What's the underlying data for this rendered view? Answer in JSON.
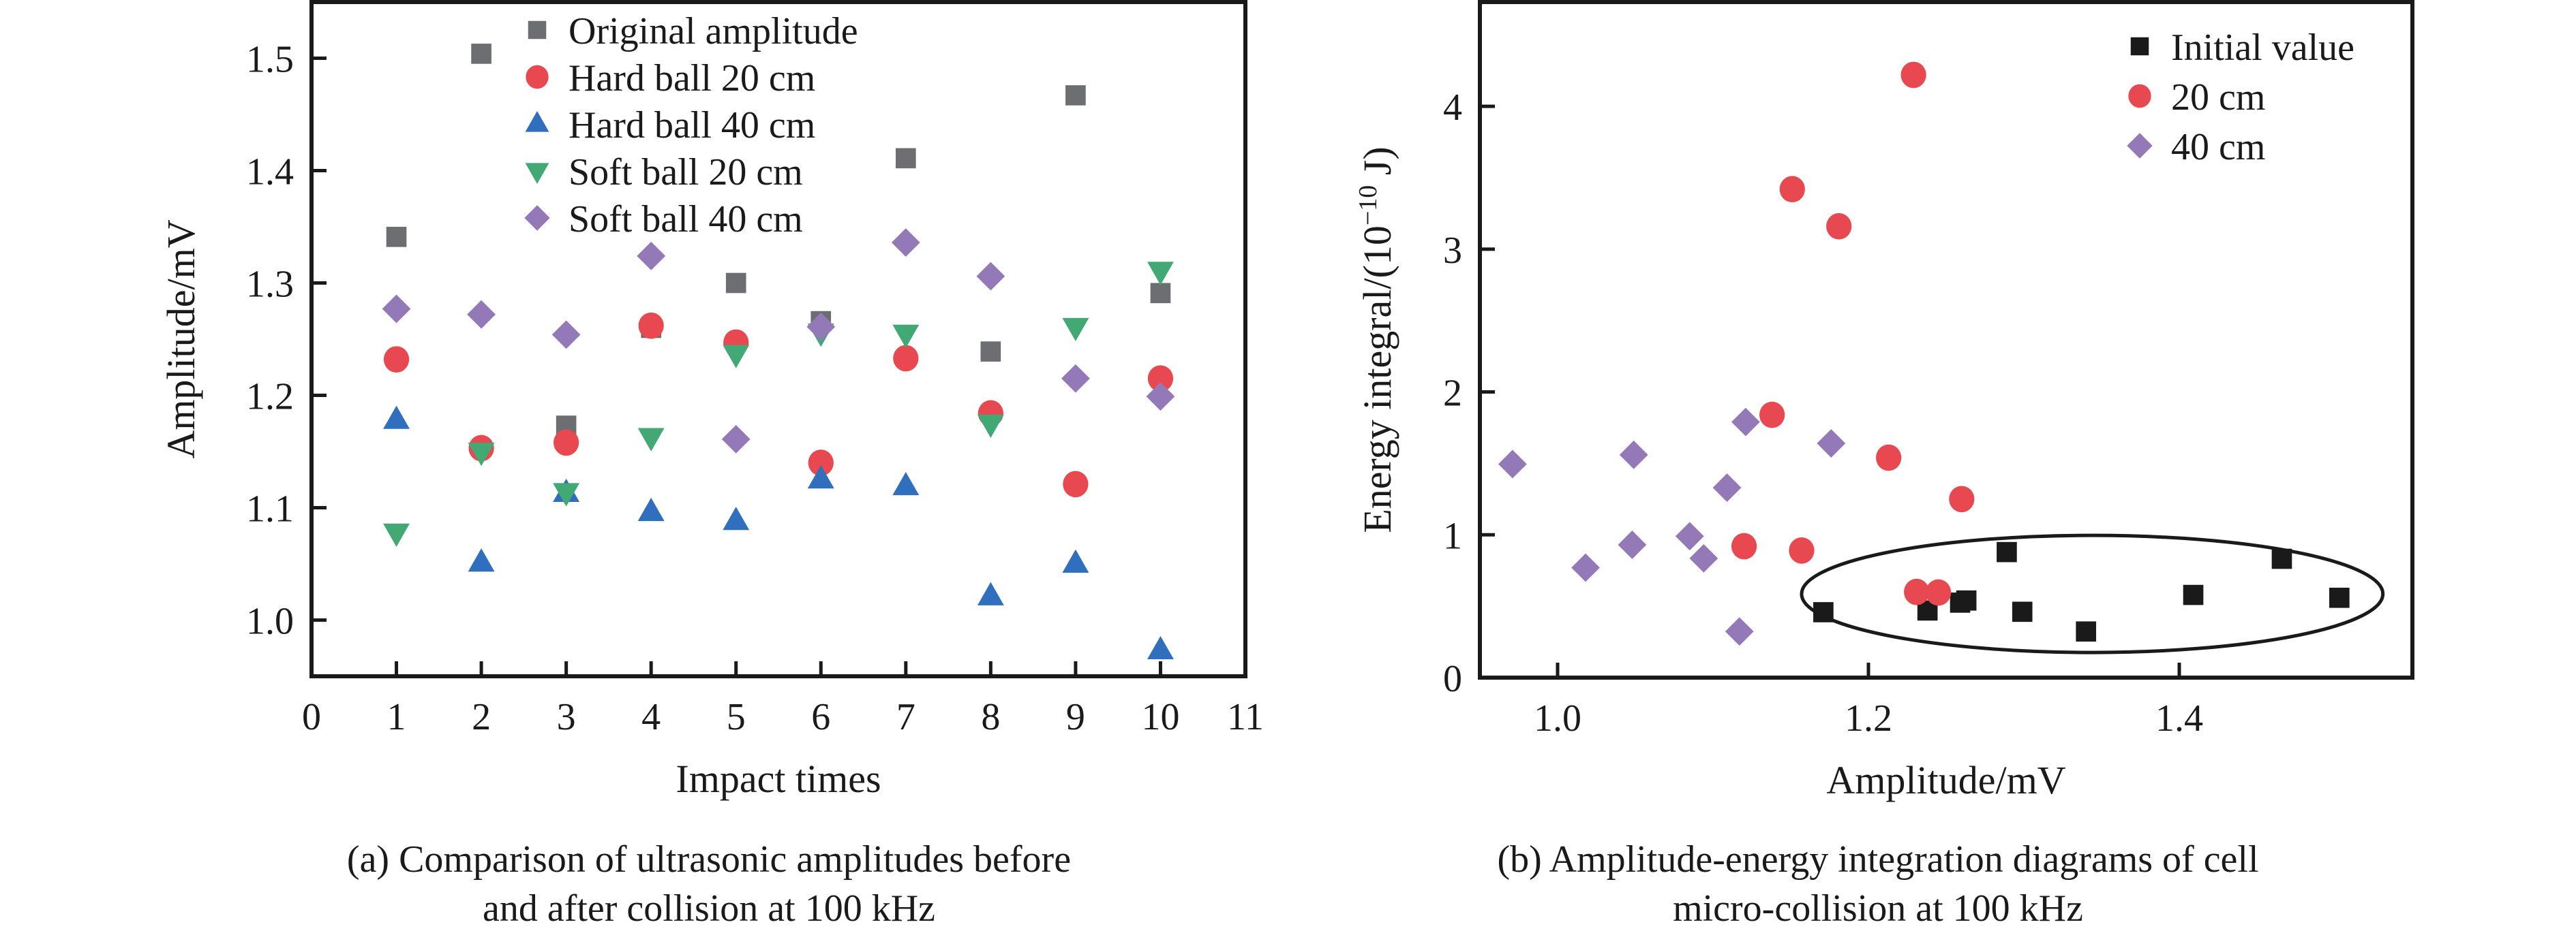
{
  "chart_data": [
    {
      "type": "scatter",
      "panel": "a",
      "caption": [
        "(a) Comparison of ultrasonic amplitudes before",
        "and after collision at 100 kHz"
      ],
      "xlabel": "Impact times",
      "ylabel": "Amplitude/mV",
      "xlim": [
        0,
        11
      ],
      "ylim": [
        0.95,
        1.55
      ],
      "xticks": [
        "0",
        "1",
        "2",
        "3",
        "4",
        "5",
        "6",
        "7",
        "8",
        "9",
        "10",
        "11"
      ],
      "xtick_values": [
        0,
        1,
        2,
        3,
        4,
        5,
        6,
        7,
        8,
        9,
        10,
        11
      ],
      "yticks": [
        "1.0",
        "1.1",
        "1.2",
        "1.3",
        "1.4",
        "1.5"
      ],
      "ytick_values": [
        1.0,
        1.1,
        1.2,
        1.3,
        1.4,
        1.5
      ],
      "grid": false,
      "legend_position": "top-center",
      "x": [
        1,
        2,
        3,
        4,
        5,
        6,
        7,
        8,
        9,
        10
      ],
      "series": [
        {
          "name": "Original amplitude",
          "marker": "square",
          "color": "#6d6e72",
          "values": [
            1.341,
            1.504,
            1.173,
            1.26,
            1.3,
            1.266,
            1.411,
            1.239,
            1.467,
            1.291
          ]
        },
        {
          "name": "Hard ball 20 cm",
          "marker": "circle",
          "color": "#e8484f",
          "values": [
            1.232,
            1.153,
            1.158,
            1.262,
            1.247,
            1.14,
            1.233,
            1.184,
            1.121,
            1.215
          ]
        },
        {
          "name": "Hard ball 40 cm",
          "marker": "triangle-up",
          "color": "#2f6fbd",
          "values": [
            1.178,
            1.051,
            1.113,
            1.096,
            1.088,
            1.125,
            1.119,
            1.021,
            1.05,
            0.973
          ]
        },
        {
          "name": "Soft ball 20 cm",
          "marker": "triangle-down",
          "color": "#42a874",
          "values": [
            1.078,
            1.15,
            1.114,
            1.163,
            1.237,
            1.256,
            1.255,
            1.175,
            1.261,
            1.311
          ]
        },
        {
          "name": "Soft ball 40 cm",
          "marker": "diamond",
          "color": "#9479b8",
          "values": [
            1.277,
            1.272,
            1.254,
            1.324,
            1.161,
            1.261,
            1.336,
            1.306,
            1.215,
            1.199
          ]
        }
      ]
    },
    {
      "type": "scatter",
      "panel": "b",
      "caption": [
        "(b) Amplitude-energy integration diagrams of cell",
        "micro-collision at 100 kHz"
      ],
      "xlabel": "Amplitude/mV",
      "ylabel_main": "Energy integral/(10",
      "ylabel_sup": "−10",
      "ylabel_tail": " J)",
      "xlim": [
        0.95,
        1.55
      ],
      "ylim": [
        0,
        4.73
      ],
      "xticks": [
        "1.0",
        "1.2",
        "1.4"
      ],
      "xtick_values": [
        1.0,
        1.2,
        1.4
      ],
      "yticks": [
        "0",
        "1",
        "2",
        "3",
        "4"
      ],
      "ytick_values": [
        0,
        1,
        2,
        3,
        4
      ],
      "grid": false,
      "legend_position": "top-right",
      "series": [
        {
          "name": "Initial value",
          "marker": "square",
          "color": "#1a1a1a",
          "points": [
            [
              1.171,
              0.458
            ],
            [
              1.238,
              0.47
            ],
            [
              1.259,
              0.525
            ],
            [
              1.263,
              0.54
            ],
            [
              1.289,
              0.879
            ],
            [
              1.299,
              0.461
            ],
            [
              1.34,
              0.323
            ],
            [
              1.409,
              0.579
            ],
            [
              1.466,
              0.832
            ],
            [
              1.503,
              0.559
            ]
          ]
        },
        {
          "name": "20 cm",
          "marker": "circle",
          "color": "#e8484f",
          "points": [
            [
              1.229,
              4.22
            ],
            [
              1.151,
              3.42
            ],
            [
              1.181,
              3.16
            ],
            [
              1.138,
              1.84
            ],
            [
              1.213,
              1.54
            ],
            [
              1.26,
              1.25
            ],
            [
              1.12,
              0.92
            ],
            [
              1.157,
              0.89
            ],
            [
              1.231,
              0.6
            ],
            [
              1.245,
              0.596
            ]
          ]
        },
        {
          "name": "40 cm",
          "marker": "diamond",
          "color": "#9479b8",
          "points": [
            [
              0.971,
              1.495
            ],
            [
              1.049,
              1.56
            ],
            [
              1.121,
              1.79
            ],
            [
              1.176,
              1.64
            ],
            [
              1.109,
              1.33
            ],
            [
              1.018,
              0.77
            ],
            [
              1.048,
              0.93
            ],
            [
              1.085,
              0.99
            ],
            [
              1.094,
              0.835
            ],
            [
              1.117,
              0.323
            ]
          ]
        }
      ],
      "annotation": {
        "shape": "ellipse",
        "center": [
          1.344,
          0.586
        ],
        "radius_x": 0.187,
        "radius_y": 0.41,
        "meaning": "Initial value cluster"
      }
    }
  ]
}
